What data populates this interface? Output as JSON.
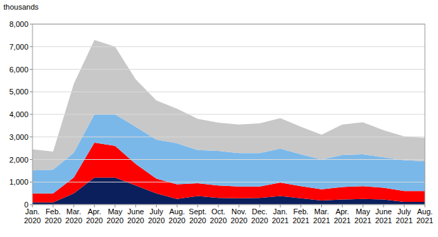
{
  "chart_data": {
    "type": "area",
    "stacked": true,
    "grid": true,
    "ylabel": "thousands",
    "categories": [
      "Jan. 2020",
      "Feb. 2020",
      "Mar. 2020",
      "Apr. 2020",
      "May 2020",
      "June 2020",
      "July 2020",
      "Aug. 2020",
      "Sept. 2020",
      "Oct. 2020",
      "Nov. 2020",
      "Dec. 2020",
      "Jan. 2021",
      "Feb. 2021",
      "Mar. 2021",
      "Apr. 2021",
      "May 2021",
      "June 2021",
      "July 2021",
      "Aug. 2021"
    ],
    "series": [
      {
        "color": "#0b1f5c",
        "values": [
          100,
          100,
          500,
          1200,
          1200,
          850,
          500,
          250,
          380,
          300,
          280,
          300,
          380,
          280,
          180,
          230,
          250,
          230,
          120,
          120
        ]
      },
      {
        "color": "#ff0000",
        "values": [
          400,
          400,
          700,
          1550,
          1400,
          950,
          650,
          650,
          570,
          550,
          520,
          500,
          600,
          540,
          500,
          550,
          570,
          520,
          480,
          480
        ]
      },
      {
        "color": "#7ab8ea",
        "values": [
          1020,
          1050,
          1100,
          1250,
          1400,
          1650,
          1730,
          1820,
          1470,
          1530,
          1480,
          1480,
          1500,
          1410,
          1320,
          1420,
          1410,
          1350,
          1370,
          1320
        ]
      },
      {
        "color": "#c8c8c8",
        "values": [
          930,
          800,
          3050,
          3300,
          3000,
          2100,
          1740,
          1530,
          1380,
          1250,
          1270,
          1320,
          1350,
          1220,
          1100,
          1350,
          1420,
          1200,
          1050,
          1040
        ]
      }
    ],
    "ylim": [
      0,
      8000
    ],
    "yticks": [
      0,
      {
        "value": 1000,
        "label": "1,000"
      },
      {
        "value": 2000,
        "label": "2,000"
      },
      {
        "value": 3000,
        "label": "3,000"
      },
      {
        "value": 4000,
        "label": "4,000"
      },
      {
        "value": 5000,
        "label": "5,000"
      },
      {
        "value": 6000,
        "label": "6,000"
      },
      {
        "value": 7000,
        "label": "7,000"
      },
      {
        "value": 8000,
        "label": "8,000"
      }
    ]
  }
}
